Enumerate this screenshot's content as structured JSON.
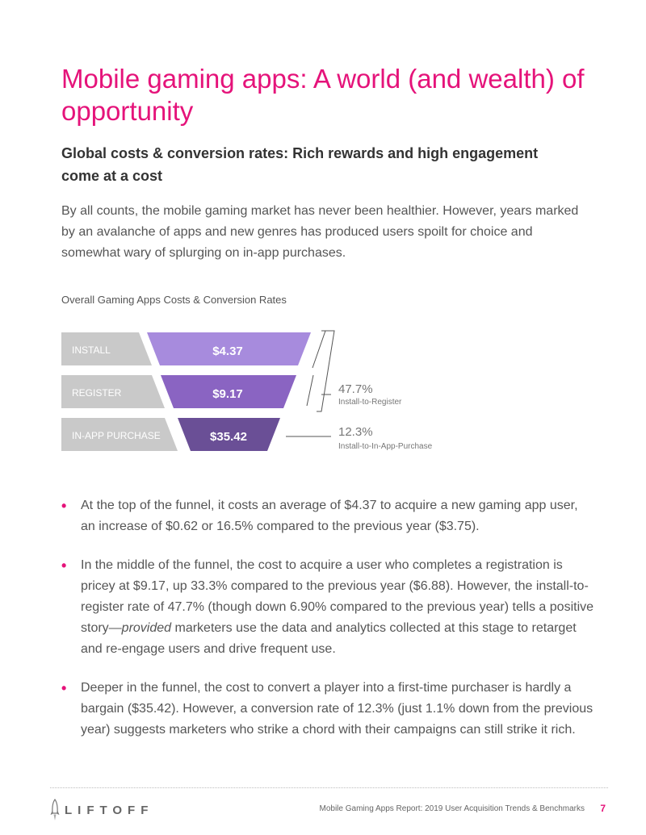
{
  "title": "Mobile gaming apps: A world (and wealth) of opportunity",
  "subtitle": "Global costs & conversion rates: Rich rewards and high engagement come at a cost",
  "intro": "By all counts, the mobile gaming market has never been healthier. However, years marked by an avalanche of apps and new genres has produced users spoilt for choice and somewhat wary of splurging on in-app purchases.",
  "chart_data": {
    "type": "funnel",
    "title": "Overall Gaming Apps Costs & Conversion Rates",
    "stages": [
      {
        "label": "INSTALL",
        "value": 4.37,
        "display": "$4.37",
        "color": "#a78bdd"
      },
      {
        "label": "REGISTER",
        "value": 9.17,
        "display": "$9.17",
        "color": "#8a64c2"
      },
      {
        "label": "IN-APP PURCHASE",
        "value": 35.42,
        "display": "$35.42",
        "color": "#6a4f96"
      }
    ],
    "conversion_rates": [
      {
        "value": 47.7,
        "display": "47.7%",
        "label": "Install-to-Register"
      },
      {
        "value": 12.3,
        "display": "12.3%",
        "label": "Install-to-In-App-Purchase"
      }
    ]
  },
  "bullets": [
    {
      "text": "At the top of the funnel, it costs an average of $4.37 to acquire a new gaming app user, an increase of $0.62 or 16.5% compared to the previous year ($3.75)."
    },
    {
      "text_before": "In the middle of the funnel, the cost to acquire a user who completes a registration is pricey at $9.17, up 33.3% compared to the previous year ($6.88). However, the install-to-register rate of 47.7% (though down 6.90% compared to the previous year) tells a positive story—",
      "text_em": "provided",
      "text_after": " marketers use the data and analytics collected at this stage to retarget and re-engage users and drive frequent use."
    },
    {
      "text": "Deeper in the funnel, the cost to convert a player into a first-time purchaser is hardly a bargain ($35.42). However, a conversion rate of 12.3% (just 1.1% down from the previous year) suggests marketers who strike a chord with their campaigns can still strike it rich."
    }
  ],
  "footer": {
    "logo": "LIFTOFF",
    "report": "Mobile Gaming Apps Report: 2019 User Acquisition Trends & Benchmarks",
    "page": "7"
  },
  "colors": {
    "accent": "#e5137a",
    "stage_label_bg": "#c9c9c9"
  },
  "icons": {
    "logo_mark": "rocket-icon"
  }
}
